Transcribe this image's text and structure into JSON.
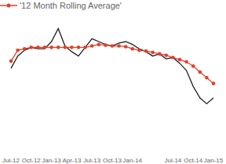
{
  "chart_data": {
    "type": "line",
    "categories": [
      "Jul-12",
      null,
      null,
      "Oct-12",
      null,
      null,
      "Jan-13",
      null,
      null,
      "Apr-13",
      null,
      null,
      "Jul-13",
      null,
      null,
      "Oct-13",
      null,
      null,
      "Jan-14",
      null,
      null,
      null,
      null,
      null,
      "Jul-14",
      null,
      null,
      "Oct-14",
      null,
      null,
      "Jan-15"
    ],
    "series": [
      {
        "color": "#222222",
        "marker": "none",
        "values": [
          115,
          132,
          140,
          144,
          142,
          142,
          152,
          170,
          146,
          138,
          132,
          144,
          156,
          152,
          148,
          146,
          150,
          152,
          148,
          142,
          138,
          132,
          135,
          128,
          130,
          122,
          112,
          90,
          74,
          66,
          74
        ]
      },
      {
        "name": "'12 Month Rolling Average'",
        "color": "#e2402b",
        "marker": "circle",
        "values": [
          125,
          140,
          142,
          144,
          144,
          144,
          144,
          144,
          144,
          144,
          144,
          144,
          146,
          148,
          147,
          146,
          146,
          145,
          142,
          140,
          139,
          137,
          135,
          133,
          130,
          127,
          124,
          118,
          110,
          102,
          94
        ]
      }
    ],
    "ylim": [
      0,
      190
    ],
    "tick_labels": "x",
    "grid": false,
    "legend": "top-left"
  }
}
